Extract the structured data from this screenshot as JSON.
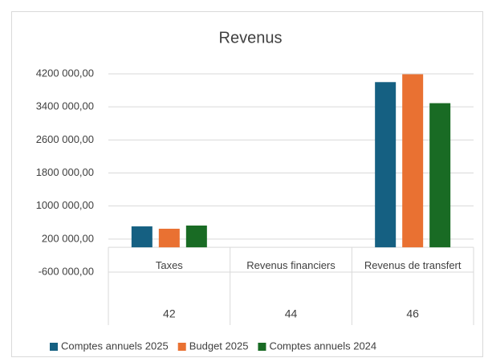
{
  "chart_data": {
    "type": "bar",
    "title": "Revenus",
    "categories": [
      "Taxes",
      "Revenus financiers",
      "Revenus de transfert"
    ],
    "category_groups": [
      "42",
      "44",
      "46"
    ],
    "series": [
      {
        "name": "Comptes annuels 2025",
        "color": "#156082",
        "values": [
          507000,
          0,
          4000000
        ]
      },
      {
        "name": "Budget 2025",
        "color": "#E97132",
        "values": [
          450000,
          0,
          4190000
        ]
      },
      {
        "name": "Comptes annuels 2024",
        "color": "#196B24",
        "values": [
          527000,
          0,
          3490000
        ]
      }
    ],
    "ylim": [
      -600000,
      4200000
    ],
    "yticks": [
      {
        "value": -600000,
        "label": "-600 000,00"
      },
      {
        "value": 200000,
        "label": "200 000,00"
      },
      {
        "value": 1000000,
        "label": "1000 000,00"
      },
      {
        "value": 1800000,
        "label": "1800 000,00"
      },
      {
        "value": 2600000,
        "label": "2600 000,00"
      },
      {
        "value": 3400000,
        "label": "3400 000,00"
      },
      {
        "value": 4200000,
        "label": "4200 000,00"
      }
    ],
    "grid": true,
    "legend": "bottom"
  }
}
